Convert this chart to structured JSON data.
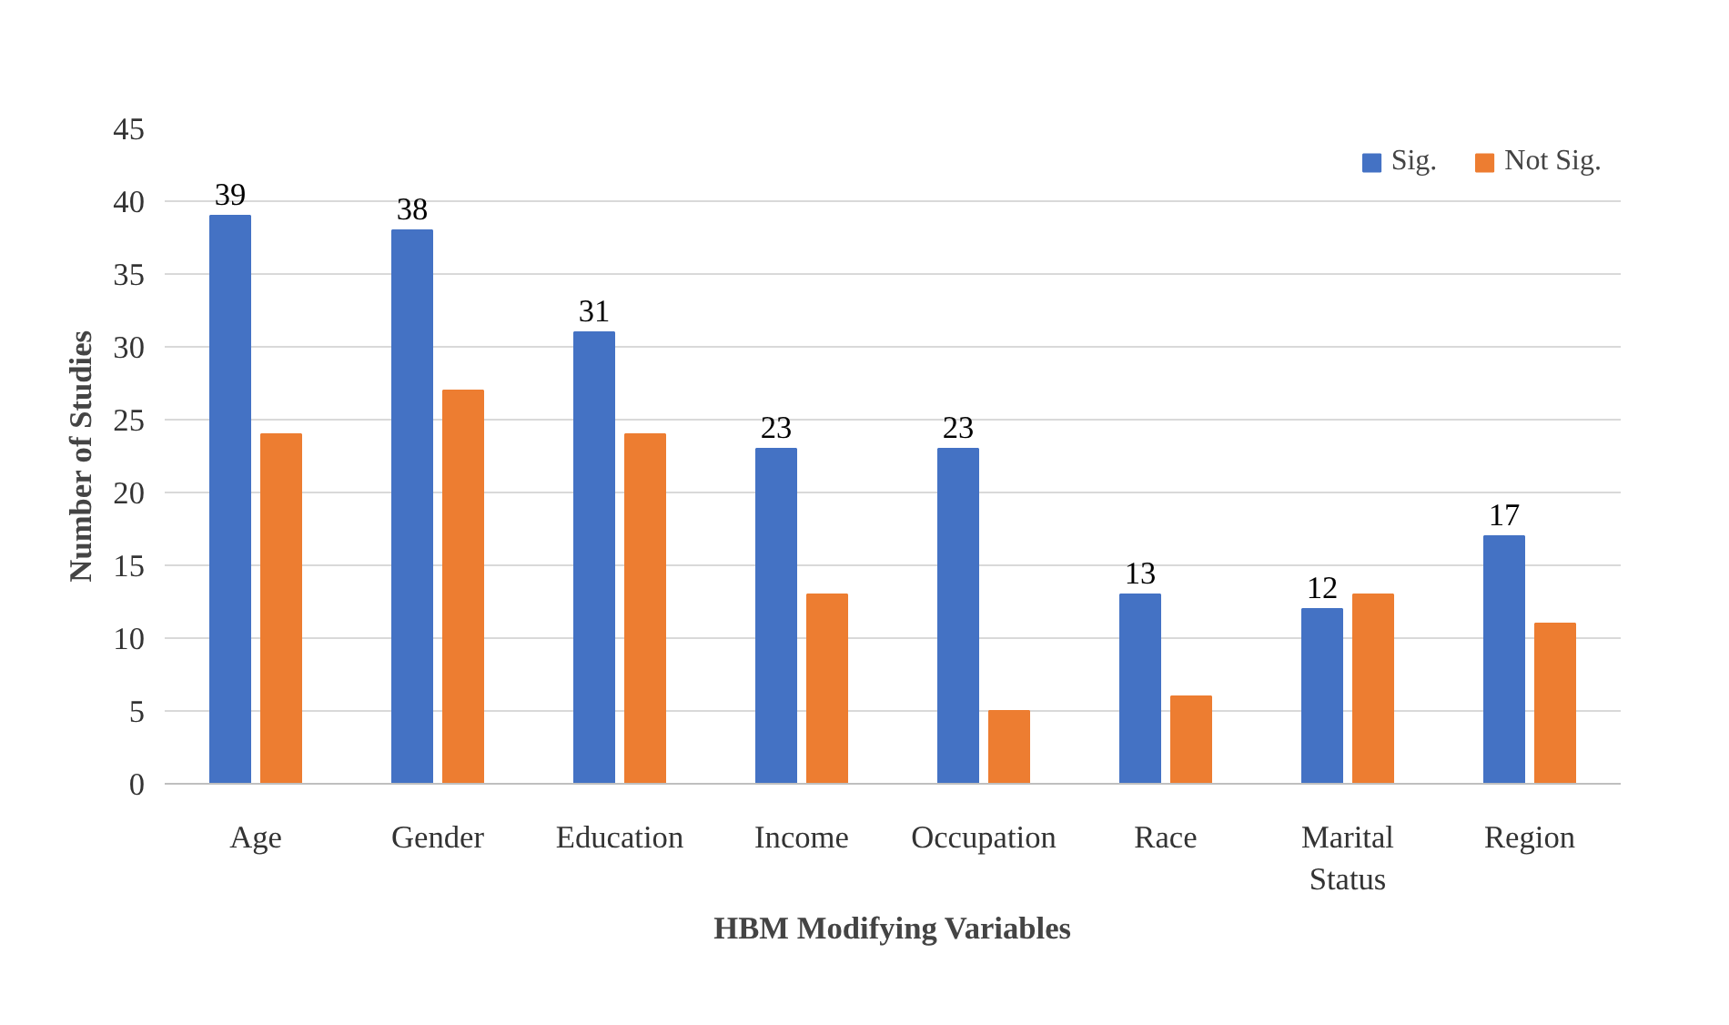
{
  "chart_data": {
    "type": "bar",
    "xlabel": "HBM Modifying Variables",
    "ylabel": "Number of Studies",
    "categories": [
      "Age",
      "Gender",
      "Education",
      "Income",
      "Occupation",
      "Race",
      "Marital Status",
      "Region"
    ],
    "series": [
      {
        "name": "Sig.",
        "color": "#4472c4",
        "values": [
          39,
          38,
          31,
          23,
          23,
          13,
          12,
          17
        ],
        "value_labels": [
          "39",
          "38",
          "31",
          "23",
          "23",
          "13",
          "12",
          "17"
        ]
      },
      {
        "name": "Not Sig.",
        "color": "#ed7d31",
        "values": [
          24,
          27,
          24,
          13,
          5,
          6,
          13,
          11
        ]
      }
    ],
    "ylim": [
      0,
      45
    ],
    "yticks": [
      0,
      5,
      10,
      15,
      20,
      25,
      30,
      35,
      40,
      45
    ],
    "grid": "y",
    "legend": "top right"
  }
}
